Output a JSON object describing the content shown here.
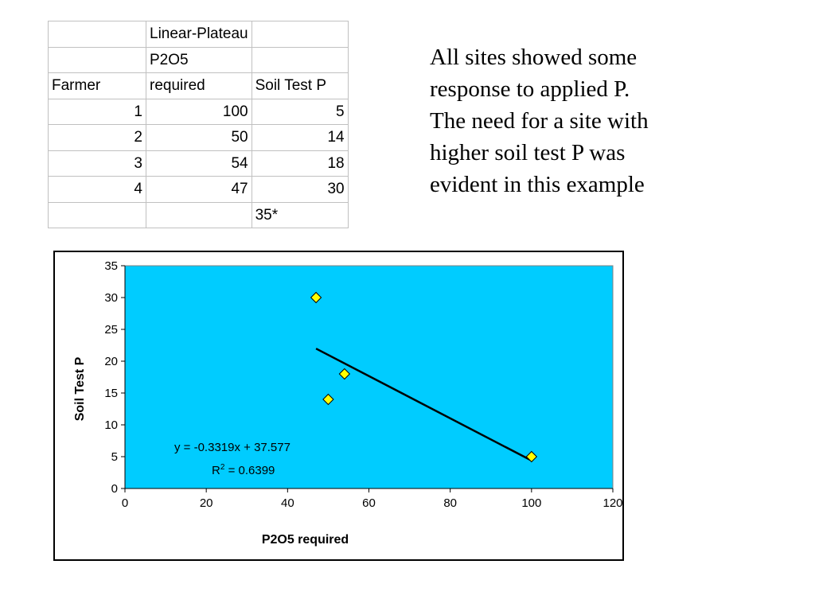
{
  "table": {
    "rows": [
      [
        "",
        "Linear-Plateau",
        ""
      ],
      [
        "",
        "P2O5",
        ""
      ],
      [
        "Farmer",
        "required",
        "Soil Test P"
      ],
      [
        "1",
        "100",
        "5"
      ],
      [
        "2",
        "50",
        "14"
      ],
      [
        "3",
        "54",
        "18"
      ],
      [
        "4",
        "47",
        "30"
      ],
      [
        "",
        "",
        "35*"
      ]
    ]
  },
  "note": {
    "lines": [
      "All sites showed some",
      "response to applied P.",
      "The need for a site with",
      "higher soil test P was",
      "evident in this example"
    ]
  },
  "chart_data": {
    "type": "scatter",
    "title": "",
    "xlabel": "P2O5 required",
    "ylabel": "Soil Test P",
    "xlim": [
      0,
      120
    ],
    "ylim": [
      0,
      35
    ],
    "xticks": [
      0,
      20,
      40,
      60,
      80,
      100,
      120
    ],
    "yticks": [
      0,
      5,
      10,
      15,
      20,
      25,
      30,
      35
    ],
    "grid": false,
    "plot_background": "#00ccff",
    "marker_color": "#ffff00",
    "marker_shape": "diamond",
    "series": [
      {
        "x": [
          100,
          50,
          54,
          47
        ],
        "y": [
          5,
          14,
          18,
          30
        ]
      }
    ],
    "trendline": {
      "type": "linear",
      "slope": -0.3319,
      "intercept": 37.577,
      "x_range": [
        47,
        100
      ],
      "equation_label": "y = -0.3319x + 37.577",
      "r2_label": "R",
      "r2_value": " = 0.6399"
    }
  }
}
